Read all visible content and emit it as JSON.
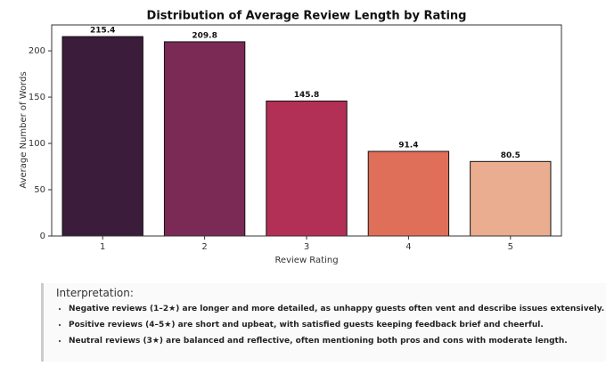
{
  "chart_data": {
    "type": "bar",
    "title": "Distribution of Average Review Length by Rating",
    "x_label": "Review Rating",
    "y_label": "Average Number of Words",
    "categories": [
      "1",
      "2",
      "3",
      "4",
      "5"
    ],
    "values": [
      215.4,
      209.8,
      145.8,
      91.4,
      80.5
    ],
    "colors": [
      "#3b1c3a",
      "#7a2a55",
      "#b22f55",
      "#df6f59",
      "#ebad8f"
    ],
    "ylim": [
      0,
      228
    ],
    "yticks": [
      0,
      50,
      100,
      150,
      200
    ],
    "grid": false
  },
  "interpretation": {
    "heading": "Interpretation:",
    "bullets": [
      "Negative reviews (1–2★) are longer and more detailed, as unhappy guests often vent and describe issues extensively.",
      "Positive reviews (4–5★) are short and upbeat, with satisfied guests keeping feedback brief and cheerful.",
      "Neutral reviews (3★) are balanced and reflective, often mentioning both pros and cons with moderate length."
    ]
  }
}
